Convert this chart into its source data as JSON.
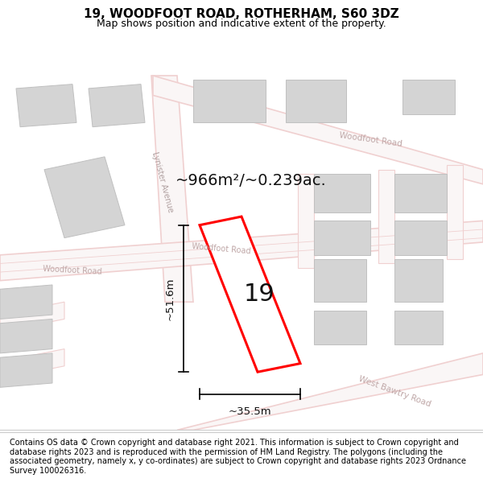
{
  "title": "19, WOODFOOT ROAD, ROTHERHAM, S60 3DZ",
  "subtitle": "Map shows position and indicative extent of the property.",
  "footer": "Contains OS data © Crown copyright and database right 2021. This information is subject to Crown copyright and database rights 2023 and is reproduced with the permission of HM Land Registry. The polygons (including the associated geometry, namely x, y co-ordinates) are subject to Crown copyright and database rights 2023 Ordnance Survey 100026316.",
  "bg_color": "#f9f4f4",
  "plot_color": "#ffffff",
  "plot_border_color": "#ff0000",
  "road_fill": "#ffffff",
  "road_stroke": "#e8a8a8",
  "building_fill": "#d8d8d8",
  "building_stroke": "#c8c8c8",
  "area_text": "~966m²/~0.239ac.",
  "label_19": "19",
  "dim_width": "~35.5m",
  "dim_height": "~51.6m",
  "title_fontsize": 11,
  "subtitle_fontsize": 9,
  "footer_fontsize": 7.5
}
